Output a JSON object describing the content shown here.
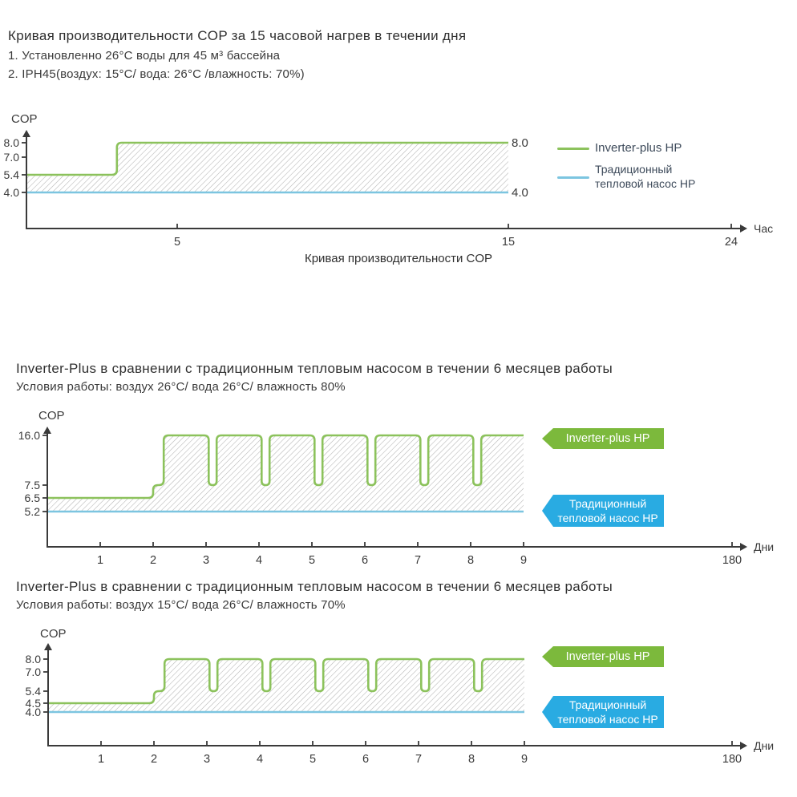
{
  "colors": {
    "green_line": "#8cc25c",
    "green_ribbon": "#7cb93c",
    "blue_line": "#7cc5e0",
    "blue_ribbon": "#29abe2",
    "hatch": "#b3b3b3",
    "axis": "#3a3a3a",
    "text": "#2f2f2f",
    "legend_text": "#3d4a5a"
  },
  "section1": {
    "title": "Кривая производительности COP за 15 часовой нагрев в течении дня",
    "line1": "1. Установленно 26°C воды для 45 м³ бассейна",
    "line2": "2. IPH45(воздух: 15°C/ вода: 26°C /влажность: 70%)",
    "caption": "Кривая производительности COP"
  },
  "section2": {
    "title": "Inverter-Plus в сравнении с традиционным тепловым насосом в течении 6 месяцев работы",
    "subtitle": "Условия работы: воздух 26°C/ вода 26°C/ влажность 80%"
  },
  "section3": {
    "title": "Inverter-Plus в сравнении с традиционным тепловым насосом в течении 6 месяцев работы",
    "subtitle": "Условия работы: воздух 15°C/ вода 26°C/ влажность 70%"
  },
  "legend1": {
    "green_label": "Inverter-plus HP",
    "blue_label_line1": "Традиционный",
    "blue_label_line2": "тепловой насос HP"
  },
  "ribbon_labels": {
    "green": "Inverter-plus HP",
    "blue_line1": "Традиционный",
    "blue_line2": "тепловой насос HP"
  },
  "chart_data": [
    {
      "type": "area",
      "title": "Кривая производительности COP",
      "ylabel": "COP",
      "xlabel": "Час",
      "xlim": [
        0,
        24
      ],
      "ylim": [
        0,
        9
      ],
      "grid": false,
      "legend_position": "right",
      "x_ticks": [
        {
          "v": 5,
          "label": "5"
        },
        {
          "v": 15,
          "label": "15"
        },
        {
          "v": 24,
          "label": "24"
        }
      ],
      "y_ticks": [
        {
          "v": 8.0,
          "label": "8.0"
        },
        {
          "v": 7.0,
          "label": "7.0"
        },
        {
          "v": 5.4,
          "label": "5.4"
        },
        {
          "v": 4.0,
          "label": "4.0"
        }
      ],
      "right_labels": [
        {
          "v": 8.0,
          "label": "8.0"
        },
        {
          "v": 4.0,
          "label": "4.0"
        }
      ],
      "series": [
        {
          "name": "Inverter-plus HP",
          "color": "#8cc25c",
          "points": [
            [
              0,
              5.4
            ],
            [
              3,
              5.4
            ],
            [
              3,
              8
            ],
            [
              15,
              8
            ]
          ]
        },
        {
          "name": "Традиционный тепловой насос HP",
          "color": "#7cc5e0",
          "points": [
            [
              0,
              4
            ],
            [
              15,
              4
            ]
          ]
        }
      ]
    },
    {
      "type": "area",
      "title": "Inverter-Plus в сравнении с традиционным тепловым насосом в течении 6 месяцев работы",
      "ylabel": "COP",
      "xlabel": "Дни",
      "xlim": [
        0,
        180
      ],
      "ylim": [
        0,
        17
      ],
      "grid": false,
      "legend_position": "ribbons-right",
      "x_ticks": [
        {
          "v": 1,
          "label": "1"
        },
        {
          "v": 2,
          "label": "2"
        },
        {
          "v": 3,
          "label": "3"
        },
        {
          "v": 4,
          "label": "4"
        },
        {
          "v": 5,
          "label": "5"
        },
        {
          "v": 6,
          "label": "6"
        },
        {
          "v": 7,
          "label": "7"
        },
        {
          "v": 8,
          "label": "8"
        },
        {
          "v": 9,
          "label": "9"
        },
        {
          "v": 180,
          "label": "180"
        }
      ],
      "y_ticks": [
        {
          "v": 16.0,
          "label": "16.0"
        },
        {
          "v": 7.5,
          "label": "7.5"
        },
        {
          "v": 6.5,
          "label": "6.5"
        },
        {
          "v": 5.2,
          "label": "5.2"
        }
      ],
      "right_labels": [],
      "series": [
        {
          "name": "Inverter-plus HP",
          "color": "#8cc25c",
          "points": [
            [
              0,
              6.5
            ],
            [
              2,
              6.5
            ],
            [
              2,
              7.5
            ],
            [
              2.2,
              7.5
            ],
            [
              2.2,
              16
            ],
            [
              3.05,
              16
            ],
            [
              3.05,
              7.5
            ],
            [
              3.2,
              7.5
            ],
            [
              3.2,
              16
            ],
            [
              4.05,
              16
            ],
            [
              4.05,
              7.5
            ],
            [
              4.2,
              7.5
            ],
            [
              4.2,
              16
            ],
            [
              5.05,
              16
            ],
            [
              5.05,
              7.5
            ],
            [
              5.2,
              7.5
            ],
            [
              5.2,
              16
            ],
            [
              6.05,
              16
            ],
            [
              6.05,
              7.5
            ],
            [
              6.2,
              7.5
            ],
            [
              6.2,
              16
            ],
            [
              7.05,
              16
            ],
            [
              7.05,
              7.5
            ],
            [
              7.2,
              7.5
            ],
            [
              7.2,
              16
            ],
            [
              8.05,
              16
            ],
            [
              8.05,
              7.5
            ],
            [
              8.2,
              7.5
            ],
            [
              8.2,
              16
            ],
            [
              9,
              16
            ]
          ]
        },
        {
          "name": "Традиционный тепловой насос HP",
          "color": "#7cc5e0",
          "points": [
            [
              0,
              5.2
            ],
            [
              9,
              5.2
            ]
          ]
        }
      ]
    },
    {
      "type": "area",
      "title": "Inverter-Plus в сравнении с традиционным тепловым насосом в течении 6 месяцев работы",
      "ylabel": "COP",
      "xlabel": "Дни",
      "xlim": [
        0,
        180
      ],
      "ylim": [
        0,
        9
      ],
      "grid": false,
      "legend_position": "ribbons-right",
      "x_ticks": [
        {
          "v": 1,
          "label": "1"
        },
        {
          "v": 2,
          "label": "2"
        },
        {
          "v": 3,
          "label": "3"
        },
        {
          "v": 4,
          "label": "4"
        },
        {
          "v": 5,
          "label": "5"
        },
        {
          "v": 6,
          "label": "6"
        },
        {
          "v": 7,
          "label": "7"
        },
        {
          "v": 8,
          "label": "8"
        },
        {
          "v": 9,
          "label": "9"
        },
        {
          "v": 180,
          "label": "180"
        }
      ],
      "y_ticks": [
        {
          "v": 8.0,
          "label": "8.0"
        },
        {
          "v": 7.0,
          "label": "7.0"
        },
        {
          "v": 5.4,
          "label": "5.4"
        },
        {
          "v": 4.5,
          "label": "4.5"
        },
        {
          "v": 4.0,
          "label": "4.0"
        }
      ],
      "right_labels": [],
      "series": [
        {
          "name": "Inverter-plus HP",
          "color": "#8cc25c",
          "points": [
            [
              0,
              4.5
            ],
            [
              2,
              4.5
            ],
            [
              2,
              5.4
            ],
            [
              2.2,
              5.4
            ],
            [
              2.2,
              8
            ],
            [
              3.05,
              8
            ],
            [
              3.05,
              5.4
            ],
            [
              3.2,
              5.4
            ],
            [
              3.2,
              8
            ],
            [
              4.05,
              8
            ],
            [
              4.05,
              5.4
            ],
            [
              4.2,
              5.4
            ],
            [
              4.2,
              8
            ],
            [
              5.05,
              8
            ],
            [
              5.05,
              5.4
            ],
            [
              5.2,
              5.4
            ],
            [
              5.2,
              8
            ],
            [
              6.05,
              8
            ],
            [
              6.05,
              5.4
            ],
            [
              6.2,
              5.4
            ],
            [
              6.2,
              8
            ],
            [
              7.05,
              8
            ],
            [
              7.05,
              5.4
            ],
            [
              7.2,
              5.4
            ],
            [
              7.2,
              8
            ],
            [
              8.05,
              8
            ],
            [
              8.05,
              5.4
            ],
            [
              8.2,
              5.4
            ],
            [
              8.2,
              8
            ],
            [
              9,
              8
            ]
          ]
        },
        {
          "name": "Традиционный тепловой насос HP",
          "color": "#7cc5e0",
          "points": [
            [
              0,
              4
            ],
            [
              9,
              4
            ]
          ]
        }
      ]
    }
  ]
}
